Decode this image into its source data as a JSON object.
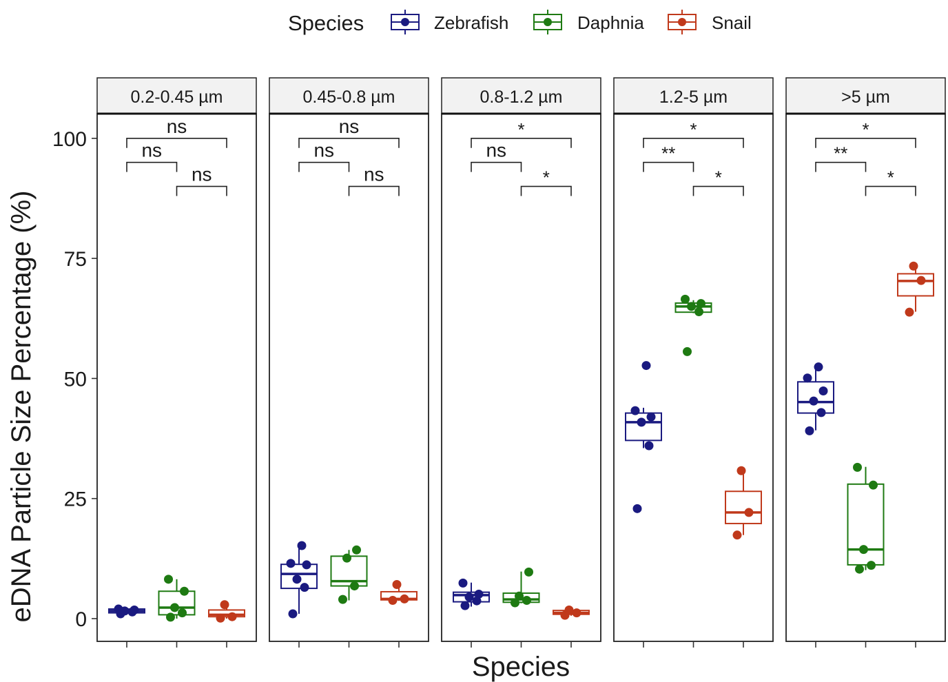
{
  "chart_data": {
    "type": "box",
    "xlabel": "Species",
    "ylabel": "eDNA Particle Size Percentage (%)",
    "ylim": [
      -4,
      111
    ],
    "yticks": [
      0,
      25,
      50,
      75,
      100
    ],
    "legend": {
      "title": "Species",
      "position": "top",
      "entries": [
        "Zebrafish",
        "Daphnia",
        "Snail"
      ]
    },
    "categories": [
      "Zebrafish",
      "Daphnia",
      "Snail"
    ],
    "x_tick_labels_shown": false,
    "colors": {
      "Zebrafish": "#1a1a80",
      "Daphnia": "#1e7a12",
      "Snail": "#c0391b"
    },
    "facets": [
      {
        "label": "0.2-0.45 µm",
        "boxes": [
          {
            "species": "Zebrafish",
            "q1": 1.2,
            "median": 1.6,
            "q3": 2.0,
            "whisker_low": 1.0,
            "whisker_high": 2.2,
            "points": [
              1.0,
              1.4,
              1.6,
              1.8,
              2.0
            ]
          },
          {
            "species": "Daphnia",
            "q1": 0.8,
            "median": 2.3,
            "q3": 5.7,
            "whisker_low": 0.0,
            "whisker_high": 8.2,
            "points": [
              0.3,
              1.2,
              2.3,
              5.7,
              8.2
            ]
          },
          {
            "species": "Snail",
            "q1": 0.4,
            "median": 0.8,
            "q3": 1.8,
            "whisker_low": 0.0,
            "whisker_high": 2.9,
            "points": [
              0.1,
              0.4,
              2.9
            ]
          }
        ],
        "comparisons": [
          {
            "pair": [
              "Zebrafish",
              "Snail"
            ],
            "label": "ns",
            "y": 100
          },
          {
            "pair": [
              "Zebrafish",
              "Daphnia"
            ],
            "label": "ns",
            "y": 95
          },
          {
            "pair": [
              "Daphnia",
              "Snail"
            ],
            "label": "ns",
            "y": 90
          }
        ]
      },
      {
        "label": "0.45-0.8 µm",
        "boxes": [
          {
            "species": "Zebrafish",
            "q1": 6.3,
            "median": 9.3,
            "q3": 11.3,
            "whisker_low": 1.0,
            "whisker_high": 15.3,
            "points": [
              1.0,
              6.5,
              8.2,
              11.2,
              11.5,
              15.2
            ]
          },
          {
            "species": "Daphnia",
            "q1": 6.8,
            "median": 7.8,
            "q3": 13.0,
            "whisker_low": 3.8,
            "whisker_high": 14.3,
            "points": [
              4.0,
              6.8,
              12.6,
              14.3
            ]
          },
          {
            "species": "Snail",
            "q1": 3.9,
            "median": 4.1,
            "q3": 5.6,
            "whisker_low": 3.7,
            "whisker_high": 7.1,
            "points": [
              3.8,
              4.1,
              7.1
            ]
          }
        ],
        "comparisons": [
          {
            "pair": [
              "Zebrafish",
              "Snail"
            ],
            "label": "ns",
            "y": 100
          },
          {
            "pair": [
              "Zebrafish",
              "Daphnia"
            ],
            "label": "ns",
            "y": 95
          },
          {
            "pair": [
              "Daphnia",
              "Snail"
            ],
            "label": "ns",
            "y": 90
          }
        ]
      },
      {
        "label": "0.8-1.2 µm",
        "boxes": [
          {
            "species": "Zebrafish",
            "q1": 3.5,
            "median": 4.9,
            "q3": 5.5,
            "whisker_low": 2.5,
            "whisker_high": 7.5,
            "points": [
              2.7,
              3.7,
              4.5,
              5.1,
              7.4
            ]
          },
          {
            "species": "Daphnia",
            "q1": 3.4,
            "median": 4.0,
            "q3": 5.3,
            "whisker_low": 3.2,
            "whisker_high": 9.8,
            "points": [
              3.3,
              3.8,
              4.7,
              9.7
            ]
          },
          {
            "species": "Snail",
            "q1": 0.9,
            "median": 1.2,
            "q3": 1.7,
            "whisker_low": 0.6,
            "whisker_high": 2.0,
            "points": [
              0.7,
              1.2,
              1.8
            ]
          }
        ],
        "comparisons": [
          {
            "pair": [
              "Zebrafish",
              "Snail"
            ],
            "label": "*",
            "y": 100
          },
          {
            "pair": [
              "Zebrafish",
              "Daphnia"
            ],
            "label": "ns",
            "y": 95
          },
          {
            "pair": [
              "Daphnia",
              "Snail"
            ],
            "label": "*",
            "y": 90
          }
        ]
      },
      {
        "label": "1.2-5 µm",
        "boxes": [
          {
            "species": "Zebrafish",
            "q1": 37.1,
            "median": 40.9,
            "q3": 42.8,
            "whisker_low": 35.5,
            "whisker_high": 43.9,
            "points": [
              22.9,
              36.0,
              40.9,
              42.0,
              43.3,
              52.7
            ]
          },
          {
            "species": "Daphnia",
            "q1": 63.8,
            "median": 65.0,
            "q3": 65.7,
            "whisker_low": 63.6,
            "whisker_high": 66.3,
            "points": [
              55.6,
              63.9,
              65.0,
              65.6,
              66.5
            ]
          },
          {
            "species": "Snail",
            "q1": 19.8,
            "median": 22.1,
            "q3": 26.5,
            "whisker_low": 17.4,
            "whisker_high": 30.8,
            "points": [
              17.4,
              22.1,
              30.8
            ]
          }
        ],
        "comparisons": [
          {
            "pair": [
              "Zebrafish",
              "Snail"
            ],
            "label": "*",
            "y": 100
          },
          {
            "pair": [
              "Zebrafish",
              "Daphnia"
            ],
            "label": "**",
            "y": 95
          },
          {
            "pair": [
              "Daphnia",
              "Snail"
            ],
            "label": "*",
            "y": 90
          }
        ]
      },
      {
        "label": ">5 µm",
        "boxes": [
          {
            "species": "Zebrafish",
            "q1": 42.8,
            "median": 45.1,
            "q3": 49.3,
            "whisker_low": 39.2,
            "whisker_high": 52.4,
            "points": [
              39.1,
              42.9,
              45.3,
              47.4,
              50.1,
              52.4
            ]
          },
          {
            "species": "Daphnia",
            "q1": 11.2,
            "median": 14.4,
            "q3": 28.0,
            "whisker_low": 10.1,
            "whisker_high": 31.6,
            "points": [
              10.3,
              11.1,
              14.4,
              27.8,
              31.5
            ]
          },
          {
            "species": "Snail",
            "q1": 67.2,
            "median": 70.3,
            "q3": 71.8,
            "whisker_low": 63.9,
            "whisker_high": 73.5,
            "points": [
              63.8,
              70.4,
              73.4
            ]
          }
        ],
        "comparisons": [
          {
            "pair": [
              "Zebrafish",
              "Snail"
            ],
            "label": "*",
            "y": 100
          },
          {
            "pair": [
              "Zebrafish",
              "Daphnia"
            ],
            "label": "**",
            "y": 95
          },
          {
            "pair": [
              "Daphnia",
              "Snail"
            ],
            "label": "*",
            "y": 90
          }
        ]
      }
    ]
  }
}
